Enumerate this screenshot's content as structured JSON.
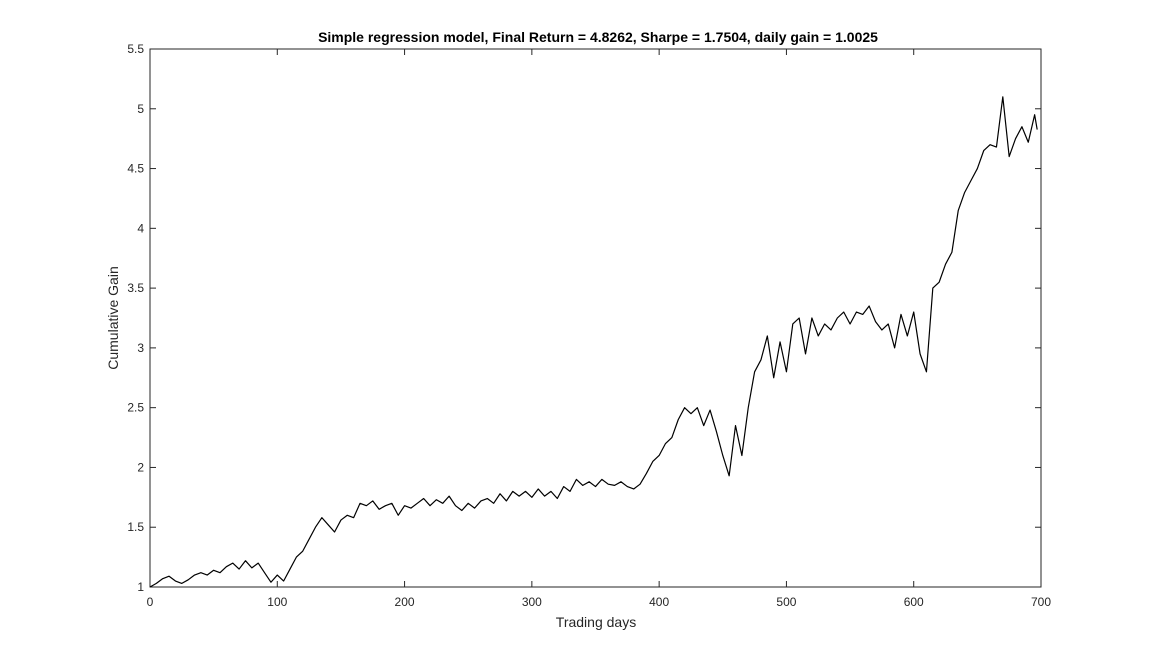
{
  "chart_data": {
    "type": "line",
    "title": "Simple regression model, Final Return = 4.8262, Sharpe = 1.7504, daily gain = 1.0025",
    "xlabel": "Trading days",
    "ylabel": "Cumulative Gain",
    "xlim": [
      0,
      700
    ],
    "ylim": [
      1,
      5.5
    ],
    "xticks": [
      0,
      100,
      200,
      300,
      400,
      500,
      600,
      700
    ],
    "yticks": [
      1,
      1.5,
      2,
      2.5,
      3,
      3.5,
      4,
      4.5,
      5,
      5.5
    ],
    "xtick_labels": [
      "0",
      "100",
      "200",
      "300",
      "400",
      "500",
      "600",
      "700"
    ],
    "ytick_labels": [
      "1",
      "1.5",
      "2",
      "2.5",
      "3",
      "3.5",
      "4",
      "4.5",
      "5",
      "5.5"
    ],
    "grid": false,
    "line_color": "#000000",
    "series": [
      {
        "x": [
          0,
          5,
          10,
          15,
          20,
          25,
          30,
          35,
          40,
          45,
          50,
          55,
          60,
          65,
          70,
          75,
          80,
          85,
          90,
          95,
          100,
          105,
          110,
          115,
          120,
          125,
          130,
          135,
          140,
          145,
          150,
          155,
          160,
          165,
          170,
          175,
          180,
          185,
          190,
          195,
          200,
          205,
          210,
          215,
          220,
          225,
          230,
          235,
          240,
          245,
          250,
          255,
          260,
          265,
          270,
          275,
          280,
          285,
          290,
          295,
          300,
          305,
          310,
          315,
          320,
          325,
          330,
          335,
          340,
          345,
          350,
          355,
          360,
          365,
          370,
          375,
          380,
          385,
          390,
          395,
          400,
          405,
          410,
          415,
          420,
          425,
          430,
          435,
          440,
          445,
          450,
          455,
          460,
          465,
          470,
          475,
          480,
          485,
          490,
          495,
          500,
          505,
          510,
          515,
          520,
          525,
          530,
          535,
          540,
          545,
          550,
          555,
          560,
          565,
          570,
          575,
          580,
          585,
          590,
          595,
          600,
          605,
          610,
          615,
          620,
          625,
          630,
          635,
          640,
          645,
          650,
          655,
          660,
          665,
          670,
          675,
          680,
          685,
          690,
          695,
          697
        ],
        "y": [
          1.0,
          1.03,
          1.07,
          1.09,
          1.05,
          1.03,
          1.06,
          1.1,
          1.12,
          1.1,
          1.14,
          1.12,
          1.17,
          1.2,
          1.15,
          1.22,
          1.16,
          1.2,
          1.12,
          1.04,
          1.1,
          1.05,
          1.15,
          1.25,
          1.3,
          1.4,
          1.5,
          1.58,
          1.52,
          1.46,
          1.56,
          1.6,
          1.58,
          1.7,
          1.68,
          1.72,
          1.65,
          1.68,
          1.7,
          1.6,
          1.68,
          1.66,
          1.7,
          1.74,
          1.68,
          1.73,
          1.7,
          1.76,
          1.68,
          1.64,
          1.7,
          1.66,
          1.72,
          1.74,
          1.7,
          1.78,
          1.72,
          1.8,
          1.76,
          1.8,
          1.75,
          1.82,
          1.76,
          1.8,
          1.74,
          1.84,
          1.8,
          1.9,
          1.85,
          1.88,
          1.84,
          1.9,
          1.86,
          1.85,
          1.88,
          1.84,
          1.82,
          1.86,
          1.95,
          2.05,
          2.1,
          2.2,
          2.25,
          2.4,
          2.5,
          2.45,
          2.5,
          2.35,
          2.48,
          2.3,
          2.1,
          1.93,
          2.35,
          2.1,
          2.5,
          2.8,
          2.9,
          3.1,
          2.75,
          3.05,
          2.8,
          3.2,
          3.25,
          2.95,
          3.25,
          3.1,
          3.2,
          3.15,
          3.25,
          3.3,
          3.2,
          3.3,
          3.28,
          3.35,
          3.22,
          3.15,
          3.2,
          3.0,
          3.28,
          3.1,
          3.3,
          2.95,
          2.8,
          3.5,
          3.55,
          3.7,
          3.8,
          4.15,
          4.3,
          4.4,
          4.5,
          4.65,
          4.7,
          4.68,
          5.1,
          4.6,
          4.75,
          4.85,
          4.72,
          4.95,
          4.8262
        ]
      }
    ]
  }
}
